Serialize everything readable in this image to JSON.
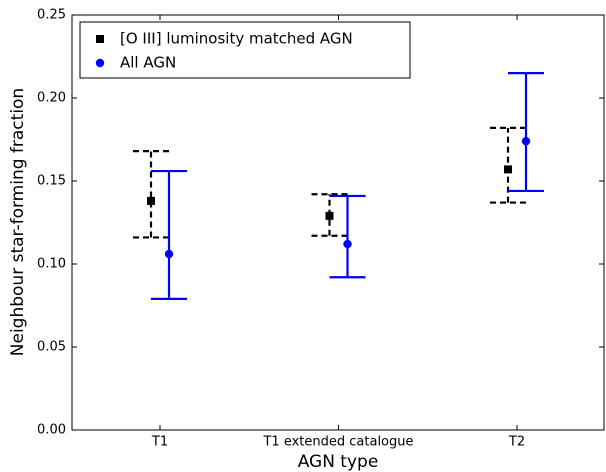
{
  "chart_data": {
    "type": "errorbar",
    "xlabel": "AGN type",
    "ylabel": "Neighbour star-forming fraction",
    "categories": [
      "T1",
      "T1 extended catalogue",
      "T2"
    ],
    "series": [
      {
        "name": "[O III] luminosity matched AGN",
        "color": "#000000",
        "marker": "square",
        "linestyle": "dashed",
        "values": [
          0.138,
          0.129,
          0.157
        ],
        "lower": [
          0.116,
          0.117,
          0.137
        ],
        "upper": [
          0.168,
          0.142,
          0.182
        ]
      },
      {
        "name": "All AGN",
        "color": "#0000ff",
        "marker": "circle",
        "linestyle": "solid",
        "values": [
          0.106,
          0.112,
          0.174
        ],
        "lower": [
          0.079,
          0.092,
          0.144
        ],
        "upper": [
          0.156,
          0.141,
          0.215
        ]
      }
    ],
    "ylim": [
      0,
      0.25
    ],
    "yticks": [
      {
        "value": 0,
        "label": "0.00"
      },
      0.05,
      {
        "value": 0.1,
        "label": "0.10"
      },
      0.15,
      {
        "value": 0.2,
        "label": "0.20"
      },
      0.25
    ],
    "legend": "upper left"
  }
}
